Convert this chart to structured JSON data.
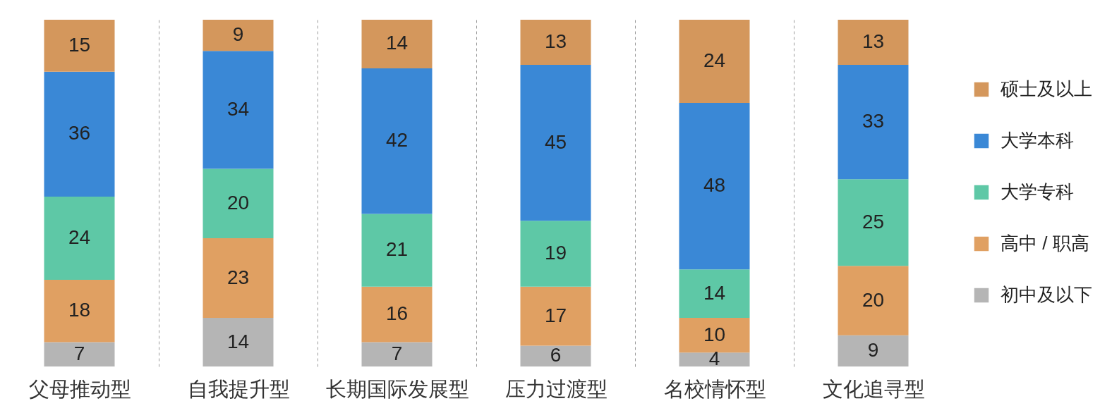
{
  "chart_data": {
    "type": "bar",
    "stacked": true,
    "categories": [
      "父母推动型",
      "自我提升型",
      "长期国际发展型",
      "压力过渡型",
      "名校情怀型",
      "文化追寻型"
    ],
    "series": [
      {
        "name": "初中及以下",
        "color": "#b5b5b5",
        "values": [
          7,
          14,
          7,
          6,
          4,
          9
        ]
      },
      {
        "name": "高中 / 职高",
        "color": "#e0a062",
        "values": [
          18,
          23,
          16,
          17,
          10,
          20
        ]
      },
      {
        "name": "大学专科",
        "color": "#5ec8a6",
        "values": [
          24,
          20,
          21,
          19,
          14,
          25
        ]
      },
      {
        "name": "大学本科",
        "color": "#3a88d6",
        "values": [
          36,
          34,
          42,
          45,
          48,
          33
        ]
      },
      {
        "name": "硕士及以上",
        "color": "#d4975c",
        "values": [
          15,
          9,
          14,
          13,
          24,
          13
        ]
      }
    ],
    "data_labels": true,
    "legend": "right",
    "grid": "x",
    "tick_labels": "x"
  }
}
